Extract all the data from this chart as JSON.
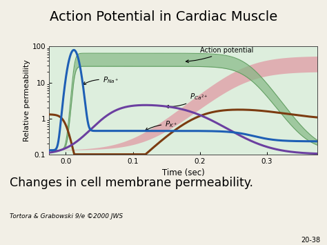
{
  "title": "Action Potential in Cardiac Muscle",
  "subtitle": "Changes in cell membrane permeability.",
  "caption": "Tortora & Grabowski 9/e ©2000 JWS",
  "page_num": "20-38",
  "xlabel": "Time (sec)",
  "ylabel": "Relative permeability",
  "plot_bg": "#ddeedd",
  "fig_bg": "#f2efe6",
  "ylim_log": [
    0.1,
    100
  ],
  "xlim": [
    -0.025,
    0.375
  ],
  "xticks": [
    0.0,
    0.1,
    0.2,
    0.3
  ],
  "yticks": [
    0.1,
    1,
    10,
    100
  ],
  "pna_color": "#1e5fb5",
  "pca_color": "#6b3fa0",
  "pk_color": "#7b3b10",
  "green_fill": "#85b885",
  "green_edge": "#5a9a5a",
  "pink_fill": "#e0a0a8",
  "pink_edge": "#d07878"
}
